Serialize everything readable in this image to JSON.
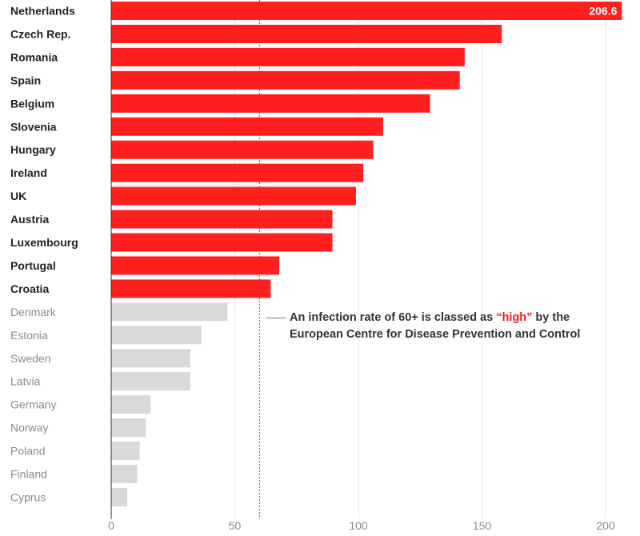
{
  "chart_data": {
    "type": "bar",
    "orientation": "horizontal",
    "categories": [
      "Netherlands",
      "Czech Rep.",
      "Romania",
      "Spain",
      "Belgium",
      "Slovenia",
      "Hungary",
      "Ireland",
      "UK",
      "Austria",
      "Luxembourg",
      "Portugal",
      "Croatia",
      "Denmark",
      "Estonia",
      "Sweden",
      "Latvia",
      "Germany",
      "Norway",
      "Poland",
      "Finland",
      "Cyprus"
    ],
    "values": [
      206.6,
      158,
      143,
      141,
      129,
      110,
      106,
      102,
      99,
      89.5,
      89.5,
      68,
      64.5,
      47,
      36.5,
      32,
      32,
      16,
      14,
      11.5,
      10.5,
      6.5
    ],
    "xlim": [
      0,
      210
    ],
    "xticks": [
      0,
      50,
      100,
      150,
      200
    ],
    "threshold": 60,
    "grid": true,
    "highlighted_value_label": "206.6",
    "colors": {
      "high": "#ff1f1f",
      "low": "#d9d9d9",
      "high_text": "#222222",
      "low_text": "#8a8a8a",
      "threshold_line": "#c0392b",
      "highlight": "#e8211b"
    },
    "annotation": {
      "before": "An infection rate of 60+ is classed as ",
      "highlight": "“high”",
      "after": " by the European Centre for Disease Prevention and Control"
    }
  }
}
